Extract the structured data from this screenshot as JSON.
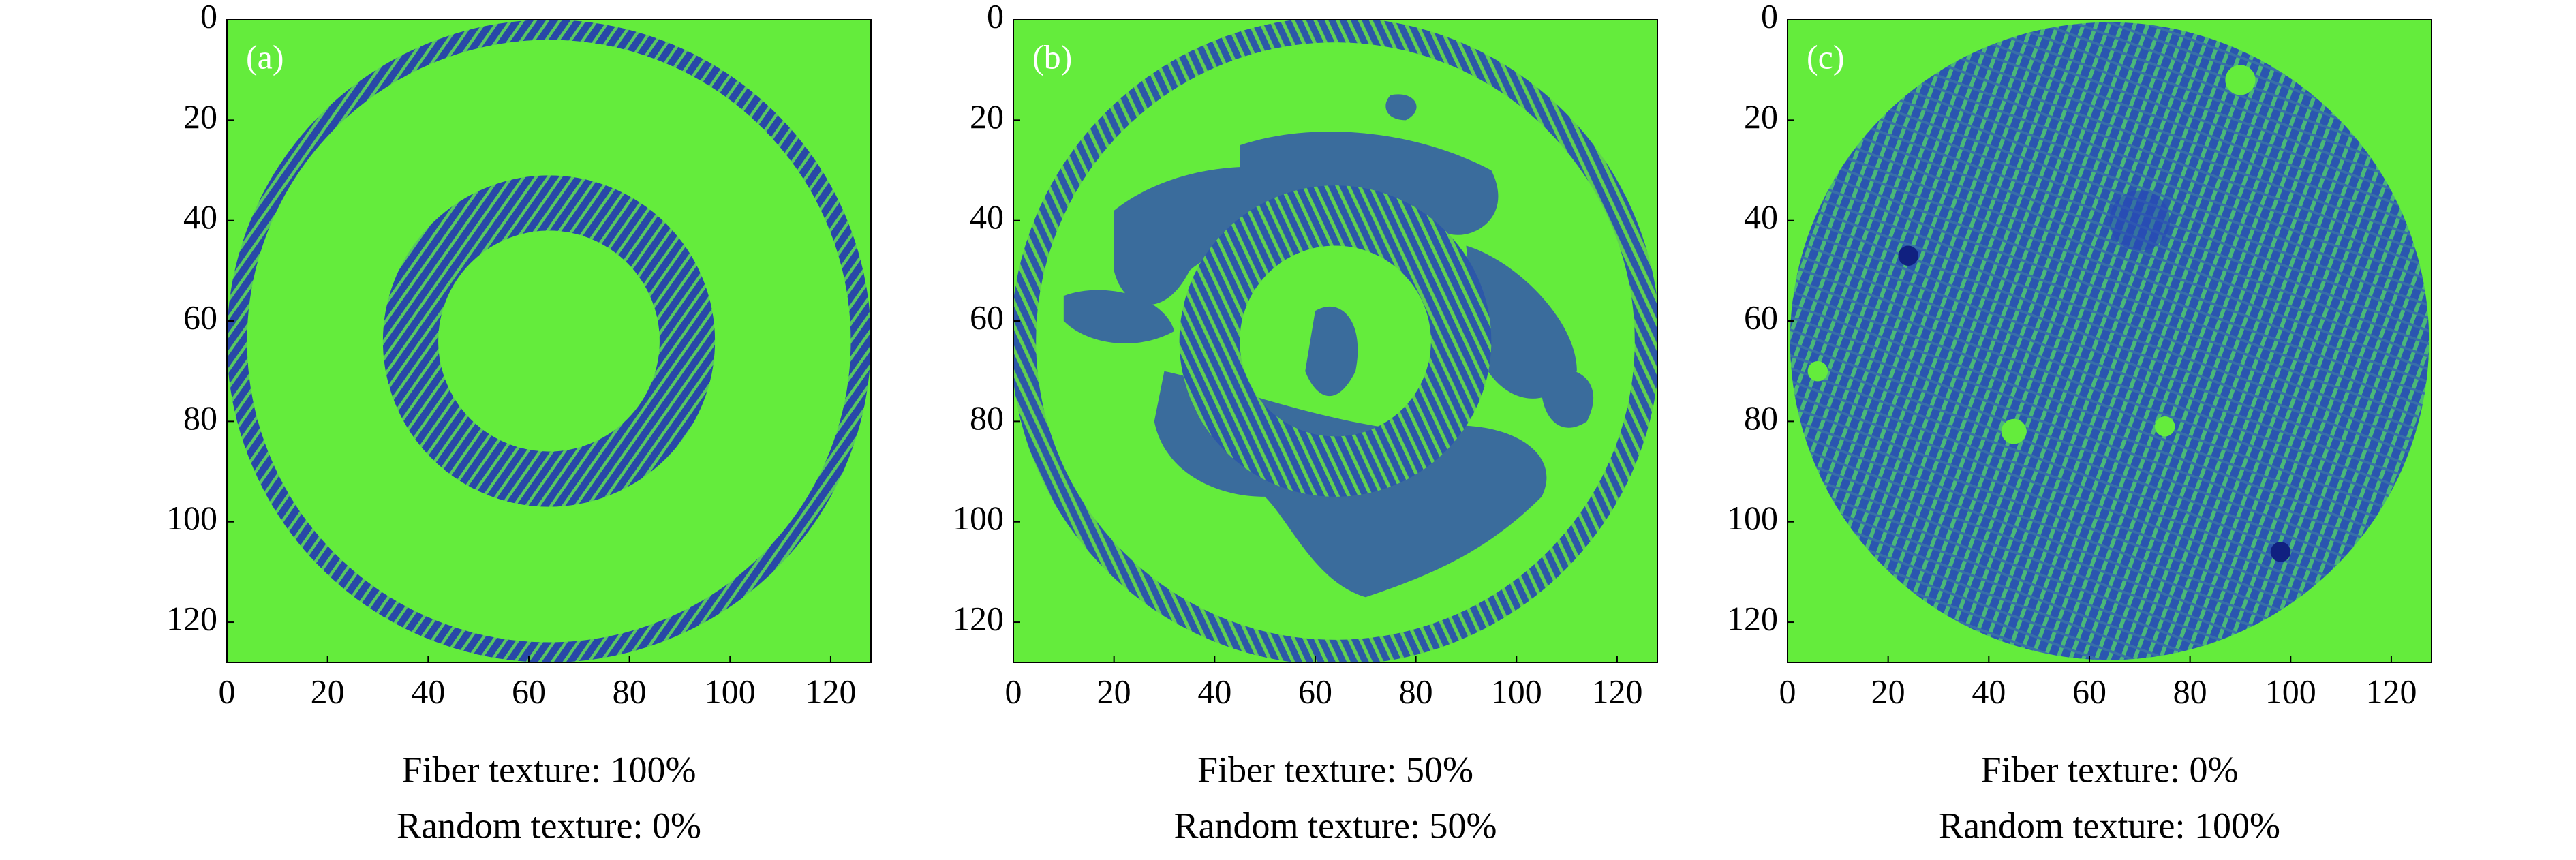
{
  "chart_data": [
    {
      "type": "image",
      "label": "(a)",
      "caption": [
        "Fiber texture: 100%",
        "Random texture: 0%"
      ],
      "xlim": [
        0,
        128
      ],
      "ylim": [
        128,
        0
      ],
      "xticks": [
        0,
        20,
        40,
        60,
        80,
        100,
        120
      ],
      "yticks": [
        0,
        20,
        40,
        60,
        80,
        100,
        120
      ],
      "background": "#64ec3c",
      "texture_color": "#2848a8"
    },
    {
      "type": "image",
      "label": "(b)",
      "caption": [
        "Fiber texture: 50%",
        "Random texture: 50%"
      ],
      "xlim": [
        0,
        128
      ],
      "ylim": [
        128,
        0
      ],
      "xticks": [
        0,
        20,
        40,
        60,
        80,
        100,
        120
      ],
      "yticks": [
        0,
        20,
        40,
        60,
        80,
        100,
        120
      ],
      "background": "#64ec3c",
      "texture_color": "#3a6c9c"
    },
    {
      "type": "image",
      "label": "(c)",
      "caption": [
        "Fiber texture: 0%",
        "Random texture: 100%"
      ],
      "xlim": [
        0,
        128
      ],
      "ylim": [
        128,
        0
      ],
      "xticks": [
        0,
        20,
        40,
        60,
        80,
        100,
        120
      ],
      "yticks": [
        0,
        20,
        40,
        60,
        80,
        100,
        120
      ],
      "background": "#64ec3c",
      "texture_color": "#2a56b0"
    }
  ]
}
